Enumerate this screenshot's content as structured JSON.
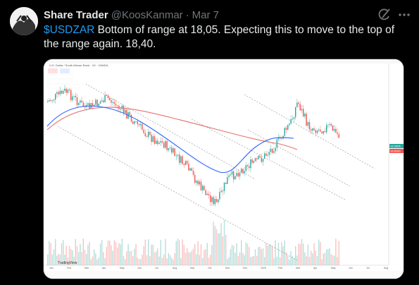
{
  "tweet": {
    "display_name": "Share Trader",
    "handle": "@KoosKanmar",
    "separator": "·",
    "date": "Mar 7",
    "cashtag": "$USDZAR",
    "text_rest": " Bottom of range at 18,05. Expecting this to move to the top of the range again. 18,40.",
    "icons": {
      "grok": "grok-icon",
      "more": "more-dots-icon"
    }
  },
  "media": {
    "symbol_title": "U.S. Dollar / South African Rand · 1D · OANDA",
    "watermark": "TradingView",
    "price_tags": [
      "18.18605",
      "18.05000"
    ],
    "time_labels": [
      "Jan",
      "Feb",
      "Mar",
      "Apr",
      "May",
      "Jun",
      "Jul",
      "Aug",
      "Sep",
      "Oct",
      "Nov",
      "Dec",
      "2025",
      "Feb",
      "Mar",
      "Apr",
      "May",
      "Jun",
      "Jul",
      "Aug"
    ],
    "colors": {
      "up": "#26a69a",
      "down": "#ef5350",
      "ma_fast": "#2962ff",
      "ma_slow": "#e57373",
      "channel": "#9e9e9e",
      "accent": "#1d9bf0"
    }
  }
}
